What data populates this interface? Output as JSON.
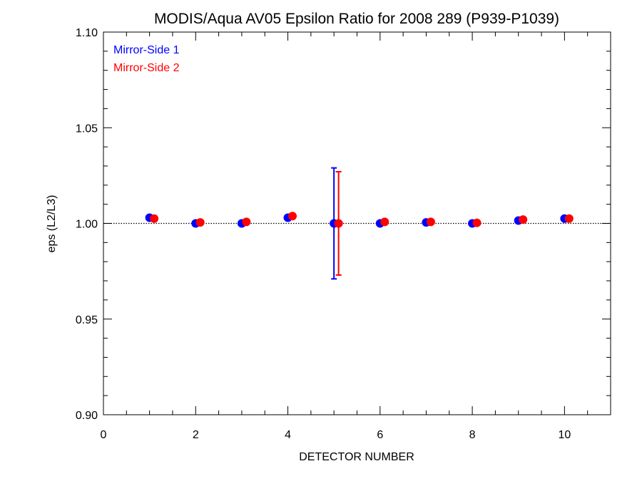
{
  "chart_data": {
    "type": "scatter",
    "title": "MODIS/Aqua AV05 Epsilon Ratio for 2008 289 (P939-P1039)",
    "xlabel": "DETECTOR NUMBER",
    "ylabel": "eps (L2/L3)",
    "xlim": [
      0,
      11
    ],
    "ylim": [
      0.9,
      1.1
    ],
    "xticks": [
      0,
      2,
      4,
      6,
      8,
      10
    ],
    "xtick_labels": [
      "0",
      "2",
      "4",
      "6",
      "8",
      "10"
    ],
    "yticks": [
      0.9,
      0.95,
      1.0,
      1.05,
      1.1
    ],
    "ytick_labels": [
      "0.90",
      "0.95",
      "1.00",
      "1.05",
      "1.10"
    ],
    "reference_line": 1.0,
    "legend_position": "top-left",
    "series": [
      {
        "name": "Mirror-Side 1",
        "color": "#0000ff",
        "x": [
          1,
          2,
          3,
          4,
          5,
          6,
          7,
          8,
          9,
          10
        ],
        "y": [
          1.003,
          1.0,
          1.0,
          1.003,
          1.0,
          1.0,
          1.0005,
          1.0,
          1.0015,
          1.0025
        ],
        "errorbars": [
          {
            "x": 5,
            "low": 0.971,
            "high": 1.029
          }
        ]
      },
      {
        "name": "Mirror-Side 2",
        "color": "#ff0000",
        "x_offset": 0.1,
        "x": [
          1,
          2,
          3,
          4,
          5,
          6,
          7,
          8,
          9,
          10
        ],
        "y": [
          1.0025,
          1.0005,
          1.0008,
          1.0038,
          1.0,
          1.0008,
          1.0008,
          1.0003,
          1.002,
          1.0025
        ],
        "errorbars": [
          {
            "x": 5,
            "low": 0.973,
            "high": 1.027
          }
        ]
      }
    ]
  }
}
